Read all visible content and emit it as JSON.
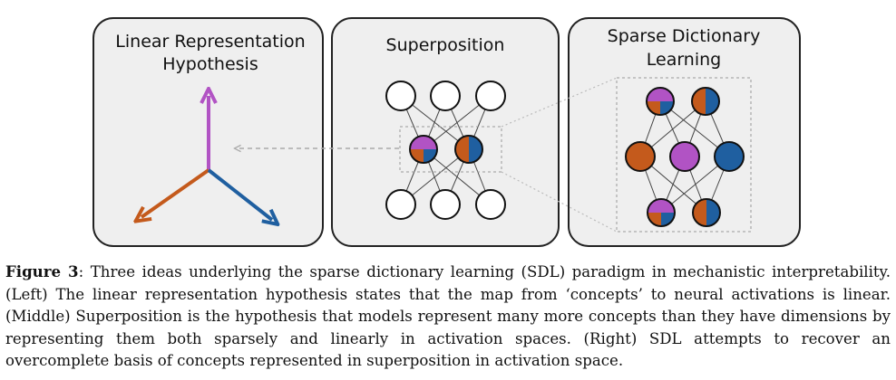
{
  "figure": {
    "panels": [
      {
        "id": "left",
        "title_lines": [
          "Linear Representation",
          "Hypothesis"
        ]
      },
      {
        "id": "middle",
        "title_lines": [
          "Superposition"
        ]
      },
      {
        "id": "right",
        "title_lines": [
          "Sparse Dictionary",
          "Learning"
        ]
      }
    ],
    "colors": {
      "purple": "#b153c4",
      "orange": "#c45a1c",
      "blue": "#1f5fa0",
      "panel_fill": "#efefef",
      "panel_stroke": "#222222"
    }
  },
  "caption": {
    "label": "Figure 3",
    "text": ":  Three ideas underlying the sparse dictionary learning (SDL) paradigm in mechanistic interpretability. (Left) The linear representation hypothesis states that the map from ‘concepts’ to neural activations is linear. (Middle) Superposition is the hypothesis that models represent many more concepts than they have dimensions by representing them both sparsely and linearly in activation spaces. (Right) SDL attempts to recover an overcomplete basis of concepts represented in superposition in activation space."
  }
}
